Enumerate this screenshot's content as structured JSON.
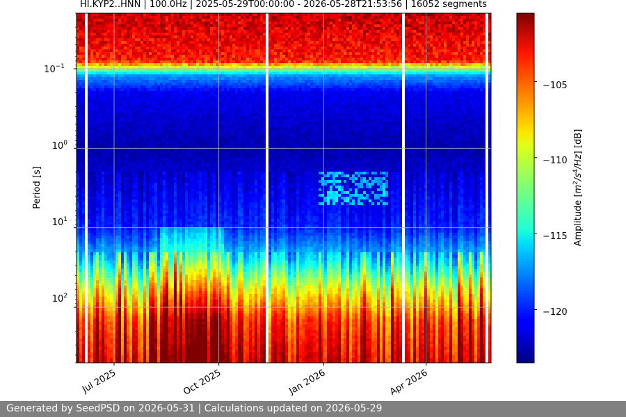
{
  "chart_data": {
    "type": "heatmap",
    "title": "HI.KYP2..HNN | 100.0Hz | 2025-05-29T00:00:00 - 2026-05-28T21:53:56 | 16052 segments",
    "x_range": [
      "2025-05-29",
      "2026-05-28"
    ],
    "x_ticks": [
      {
        "label": "Jul 2025",
        "date": "2025-07-01"
      },
      {
        "label": "Oct 2025",
        "date": "2025-10-01"
      },
      {
        "label": "Jan 2026",
        "date": "2026-01-01"
      },
      {
        "label": "Apr 2026",
        "date": "2026-04-01"
      }
    ],
    "y_label": "Period [s]",
    "y_scale": "log",
    "y_inverted": true,
    "y_range_seconds": [
      0.02,
      500
    ],
    "y_ticks": [
      {
        "base": "10",
        "exp": "−1",
        "value": 0.1
      },
      {
        "base": "10",
        "exp": "0",
        "value": 1
      },
      {
        "base": "10",
        "exp": "1",
        "value": 10
      },
      {
        "base": "10",
        "exp": "2",
        "value": 100
      }
    ],
    "grid": true,
    "colormap": "jet",
    "colorbar": {
      "label_prefix": "Amplitude [",
      "label_unit_1": "m",
      "label_sup_1": "2",
      "label_unit_2": "/s",
      "label_sup_2": "4",
      "label_unit_3": "/Hz",
      "label_suffix": "] [dB]",
      "range_db": [
        -123.5,
        -100.5
      ],
      "ticks": [
        {
          "label": "−105",
          "value": -105
        },
        {
          "label": "−110",
          "value": -110
        },
        {
          "label": "−115",
          "value": -115
        },
        {
          "label": "−120",
          "value": -120
        }
      ]
    },
    "approx_profile_db": [
      {
        "period_s": 0.02,
        "db": -102
      },
      {
        "period_s": 0.08,
        "db": -104
      },
      {
        "period_s": 0.12,
        "db": -117
      },
      {
        "period_s": 0.2,
        "db": -121
      },
      {
        "period_s": 1,
        "db": -122.5
      },
      {
        "period_s": 4,
        "db": -121
      },
      {
        "period_s": 10,
        "db": -120
      },
      {
        "period_s": 25,
        "db": -116
      },
      {
        "period_s": 60,
        "db": -110
      },
      {
        "period_s": 150,
        "db": -105
      },
      {
        "period_s": 500,
        "db": -103
      }
    ]
  },
  "footer": {
    "text": "Generated by SeedPSD on 2026-05-31 | Calculations updated on 2026-05-29"
  }
}
